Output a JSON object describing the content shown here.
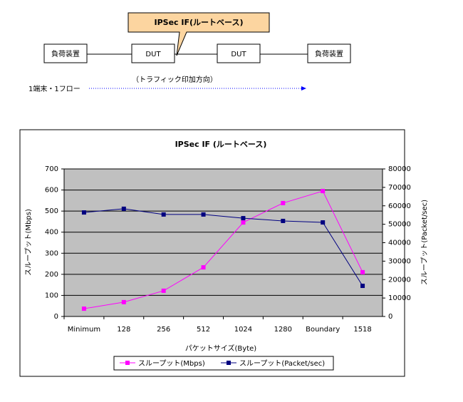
{
  "diagram": {
    "callout": "IPSec IF(ルートベース)",
    "nodes": [
      {
        "label": "負荷装置"
      },
      {
        "label": "DUT"
      },
      {
        "label": "DUT"
      },
      {
        "label": "負荷装置"
      }
    ],
    "direction_label": "（トラフィック印加方向）",
    "flow_label": "1端末・1フロー"
  },
  "chart_data": {
    "type": "line",
    "title": "IPSec IF (ルートベース)",
    "categories": [
      "Minimum",
      "128",
      "256",
      "512",
      "1024",
      "1280",
      "Boundary",
      "1518"
    ],
    "series": [
      {
        "name": "スループット(Mbps)",
        "color": "#ff00ff",
        "values": [
          37,
          68,
          122,
          233,
          446,
          538,
          595,
          210
        ]
      },
      {
        "name": "スループット(Packet/sec)",
        "color": "#000080",
        "axis": "y2",
        "values": [
          56400,
          58400,
          55300,
          55300,
          53300,
          51800,
          51000,
          16600
        ]
      }
    ],
    "ylim": [
      0,
      700
    ],
    "yticks": [
      0,
      100,
      200,
      300,
      400,
      500,
      600,
      700
    ],
    "y2lim": [
      0,
      80000
    ],
    "y2ticks": [
      0,
      10000,
      20000,
      30000,
      40000,
      50000,
      60000,
      70000,
      80000
    ],
    "xlabel": "パケットサイズ(Byte)",
    "ylabel": "スループット(Mbps)",
    "y2label": "スループット(Packet/sec)",
    "grid": true,
    "legend": "bottom",
    "background": "#c0c0c0"
  }
}
